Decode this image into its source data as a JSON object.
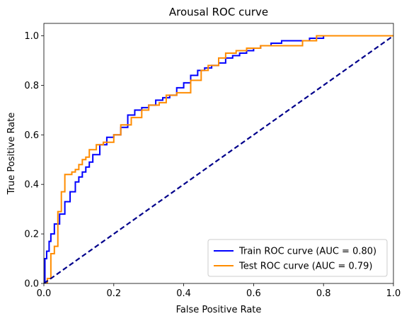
{
  "chart_data": {
    "type": "line",
    "title": "Arousal ROC curve",
    "xlabel": "False Positive Rate",
    "ylabel": "True Positive Rate",
    "xlim": [
      0.0,
      1.0
    ],
    "ylim": [
      0.0,
      1.05
    ],
    "x_ticks": [
      "0.0",
      "0.2",
      "0.4",
      "0.6",
      "0.8",
      "1.0"
    ],
    "y_ticks": [
      "0.0",
      "0.2",
      "0.4",
      "0.6",
      "0.8",
      "1.0"
    ],
    "grid": false,
    "legend_position": "lower-right",
    "series": [
      {
        "name": "Train ROC curve (AUC = 0.80)",
        "color": "#0000ff",
        "x": [
          0,
          0.003,
          0.008,
          0.015,
          0.02,
          0.03,
          0.045,
          0.06,
          0.075,
          0.09,
          0.1,
          0.11,
          0.12,
          0.13,
          0.14,
          0.16,
          0.18,
          0.2,
          0.22,
          0.24,
          0.26,
          0.28,
          0.3,
          0.32,
          0.34,
          0.36,
          0.38,
          0.4,
          0.42,
          0.44,
          0.46,
          0.48,
          0.5,
          0.52,
          0.54,
          0.56,
          0.58,
          0.6,
          0.62,
          0.65,
          0.68,
          0.72,
          0.76,
          0.8,
          0.85,
          0.9,
          0.95,
          1.0
        ],
        "y": [
          0,
          0.1,
          0.13,
          0.17,
          0.2,
          0.24,
          0.28,
          0.33,
          0.37,
          0.41,
          0.43,
          0.45,
          0.47,
          0.49,
          0.52,
          0.56,
          0.59,
          0.6,
          0.63,
          0.68,
          0.7,
          0.71,
          0.72,
          0.74,
          0.75,
          0.76,
          0.79,
          0.81,
          0.84,
          0.86,
          0.87,
          0.88,
          0.89,
          0.91,
          0.92,
          0.93,
          0.94,
          0.95,
          0.96,
          0.97,
          0.98,
          0.98,
          0.99,
          1.0,
          1.0,
          1.0,
          1.0,
          1.0
        ]
      },
      {
        "name": "Test ROC curve (AUC = 0.79)",
        "color": "#ff8c00",
        "x": [
          0,
          0.01,
          0.02,
          0.03,
          0.04,
          0.05,
          0.06,
          0.08,
          0.09,
          0.1,
          0.11,
          0.12,
          0.13,
          0.15,
          0.17,
          0.2,
          0.22,
          0.25,
          0.28,
          0.3,
          0.33,
          0.35,
          0.38,
          0.4,
          0.42,
          0.45,
          0.47,
          0.5,
          0.52,
          0.55,
          0.58,
          0.62,
          0.66,
          0.7,
          0.74,
          0.78,
          0.82,
          0.86,
          0.9,
          0.95,
          1.0
        ],
        "y": [
          0,
          0.02,
          0.12,
          0.15,
          0.29,
          0.37,
          0.44,
          0.45,
          0.46,
          0.48,
          0.5,
          0.51,
          0.54,
          0.56,
          0.57,
          0.6,
          0.64,
          0.67,
          0.7,
          0.72,
          0.73,
          0.76,
          0.77,
          0.77,
          0.82,
          0.86,
          0.88,
          0.91,
          0.93,
          0.94,
          0.95,
          0.96,
          0.96,
          0.96,
          0.98,
          1.0,
          1.0,
          1.0,
          1.0,
          1.0,
          1.0
        ]
      }
    ],
    "reference_line": {
      "color": "#00008b",
      "style": "dashed",
      "x": [
        0,
        1
      ],
      "y": [
        0,
        1
      ]
    }
  }
}
